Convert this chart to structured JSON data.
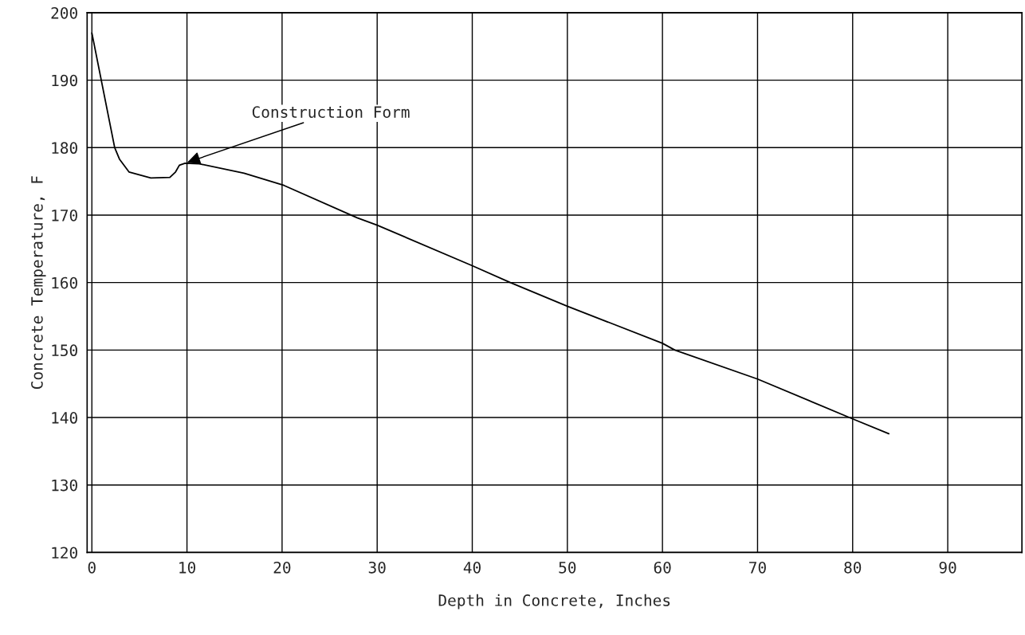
{
  "chart_data": {
    "type": "line",
    "xlabel": "Depth in Concrete, Inches",
    "ylabel": "Concrete Temperature, F",
    "x": [
      0,
      2.4,
      2.9,
      3.9,
      6.2,
      8.2,
      8.8,
      9.2,
      9.8,
      11.3,
      16,
      20.2,
      27.9,
      30,
      40,
      44,
      50,
      60,
      61.3,
      70,
      80,
      83.8
    ],
    "series": [
      {
        "color": "#000000",
        "values": [
          197,
          180,
          178.3,
          176.4,
          175.5,
          175.6,
          176.4,
          177.4,
          177.7,
          177.6,
          176.2,
          174.4,
          169.6,
          168.5,
          162.5,
          160,
          156.5,
          151,
          150,
          145.7,
          139.8,
          137.6
        ]
      }
    ],
    "annotations": [
      {
        "text": "Construction Form",
        "x": 9.8,
        "y": 177.7
      }
    ],
    "xlim": [
      -0.5,
      97.8
    ],
    "xticks": [
      0,
      10,
      20,
      30,
      40,
      50,
      60,
      70,
      80,
      90
    ],
    "ylim": [
      120,
      200
    ],
    "yticks": [
      120,
      130,
      140,
      150,
      160,
      170,
      180,
      190,
      200
    ],
    "grid": true,
    "line_style": "solid",
    "marker": "none"
  }
}
